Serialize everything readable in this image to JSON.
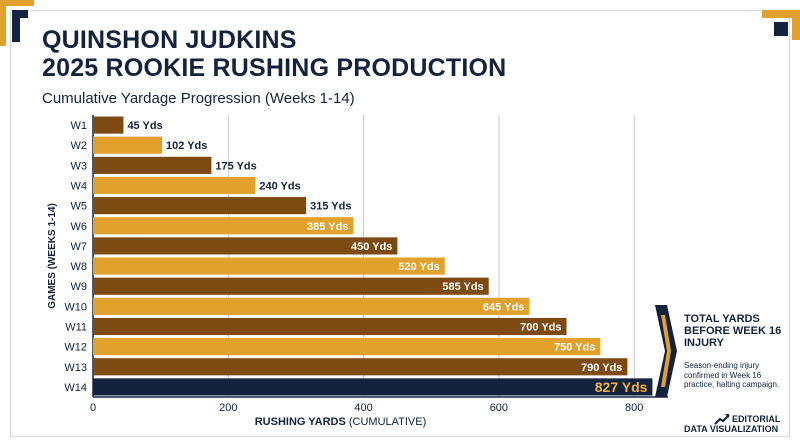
{
  "title_line1": "QUINSHON JUDKINS",
  "title_line2": "2025 ROOKIE RUSHING PRODUCTION",
  "subtitle": "Cumulative Yardage Progression (Weeks 1-14)",
  "side_panel": {
    "title": "TOTAL YARDS BEFORE WEEK 16 INJURY",
    "text": "Season-ending injury confirmed in Week 16 practice, halting campaign."
  },
  "footer": {
    "line1": "EDITORIAL",
    "line2": "DATA VISUALIZATION"
  },
  "colors": {
    "navy": "#13233d",
    "gold": "#e2a12c",
    "brown": "#7d4a12",
    "highlight_text": "#f0b233",
    "grid": "#c9c9c9"
  },
  "chart_data": {
    "type": "bar",
    "orientation": "horizontal",
    "categories": [
      "W1",
      "W2",
      "W3",
      "W4",
      "W5",
      "W6",
      "W7",
      "W8",
      "W9",
      "W10",
      "W11",
      "W12",
      "W13",
      "W14"
    ],
    "values": [
      45,
      102,
      175,
      240,
      315,
      385,
      450,
      520,
      585,
      645,
      700,
      750,
      790,
      827
    ],
    "data_labels": [
      "45 Yds",
      "102 Yds",
      "175 Yds",
      "240 Yds",
      "315 Yds",
      "385 Yds",
      "450 Yds",
      "520 Yds",
      "585 Yds",
      "645 Yds",
      "700 Yds",
      "750 Yds",
      "790 Yds",
      "827 Yds"
    ],
    "xlabel": "RUSHING YARDS",
    "xlabel_suffix": "(CUMULATIVE)",
    "ylabel": "GAMES (WEEKS 1-14)",
    "xlim": [
      0,
      850
    ],
    "xticks": [
      0,
      200,
      400,
      600,
      800
    ],
    "grid": true,
    "bar_colors": [
      "brown",
      "gold",
      "brown",
      "gold",
      "brown",
      "gold",
      "brown",
      "gold",
      "brown",
      "gold",
      "brown",
      "gold",
      "brown",
      "navy"
    ]
  }
}
